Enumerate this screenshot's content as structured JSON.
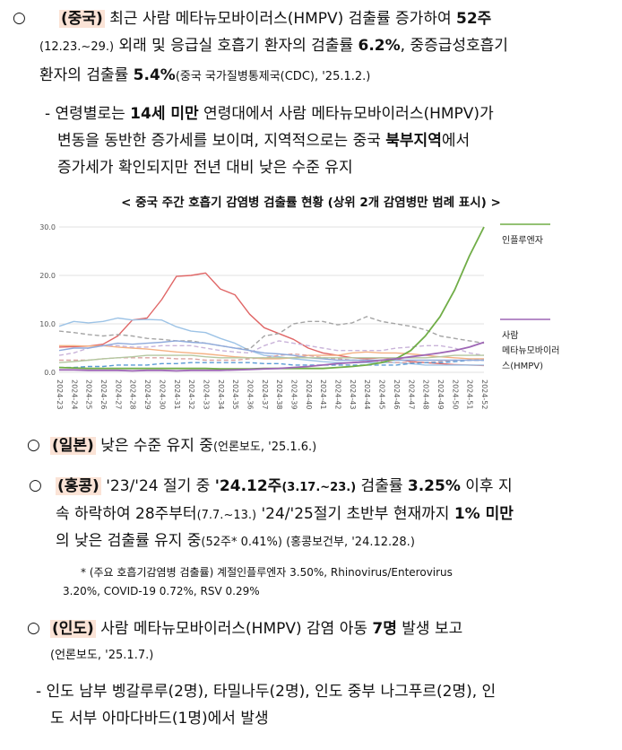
{
  "china": {
    "bullet": "○",
    "country": "(중국)",
    "l1": [
      {
        "t": " 최근 사람 메타뉴모바이러스(HMPV) 검출률 증가하여 ",
        "b": false
      },
      {
        "t": "52주",
        "b": true
      }
    ],
    "l2": [
      {
        "t": "(12.23.~29.)",
        "b": false,
        "s": "sm"
      },
      {
        "t": " 외래 및 응급실 호흡기 환자의 검출률 ",
        "b": false
      },
      {
        "t": "6.2%",
        "b": true
      },
      {
        "t": ", 중증급성호흡기",
        "b": false
      }
    ],
    "l3": [
      {
        "t": "환자의 검출률 ",
        "b": false
      },
      {
        "t": "5.4%",
        "b": true
      },
      {
        "t": "(중국 국가질병통제국(CDC), '25.1.2.)",
        "b": false,
        "s": "sm"
      }
    ],
    "sub": [
      [
        {
          "t": "- 연령별로는 ",
          "b": false
        },
        {
          "t": "14세 미만",
          "b": true
        },
        {
          "t": " 연령대에서 사람 메타뉴모바이러스(HMPV)가",
          "b": false
        }
      ],
      [
        {
          "t": "변동을 동반한 증가세를 보이며, 지역적으로는 중국 ",
          "b": false
        },
        {
          "t": "북부지역",
          "b": true
        },
        {
          "t": "에서",
          "b": false
        }
      ],
      [
        {
          "t": "증가세가 확인되지만 전년 대비 낮은 수준 유지",
          "b": false
        }
      ]
    ]
  },
  "chart_title": "< 중국 주간 호흡기 감염병 검출률 현황 (상위 2개 감염병만 범례 표시) >",
  "chart_data": {
    "type": "line",
    "title": "< 중국 주간 호흡기 감염병 검출률 현황 (상위 2개 감염병만 범례 표시) >",
    "xlabel": "",
    "ylabel": "",
    "ylim": [
      0,
      30
    ],
    "yticks": [
      "0.0",
      "10.0",
      "20.0",
      "30.0"
    ],
    "grid": "horizontal",
    "legend_position": "right",
    "x": [
      "2024-23",
      "2024-24",
      "2024-25",
      "2024-26",
      "2024-27",
      "2024-28",
      "2024-29",
      "2024-30",
      "2024-31",
      "2024-32",
      "2024-33",
      "2024-34",
      "2024-35",
      "2024-36",
      "2024-37",
      "2024-38",
      "2024-39",
      "2024-40",
      "2024-41",
      "2024-42",
      "2024-43",
      "2024-44",
      "2024-45",
      "2024-46",
      "2024-47",
      "2024-48",
      "2024-49",
      "2024-50",
      "2024-51",
      "2024-52"
    ],
    "series": [
      {
        "name": "인플루엔자",
        "color": "#70ad47",
        "dash": false,
        "values": [
          1.0,
          0.9,
          0.8,
          0.8,
          0.8,
          0.8,
          0.8,
          0.8,
          0.8,
          0.8,
          0.8,
          0.7,
          0.7,
          0.7,
          0.8,
          0.8,
          0.8,
          0.8,
          0.8,
          1.0,
          1.2,
          1.5,
          2.0,
          2.8,
          4.5,
          7.5,
          11.5,
          17.0,
          24.0,
          30.0
        ]
      },
      {
        "name": "사람 메타뉴모바이러스(HMPV)",
        "color": "#9e67b5",
        "dash": false,
        "values": [
          0.5,
          0.5,
          0.4,
          0.4,
          0.4,
          0.3,
          0.4,
          0.4,
          0.3,
          0.4,
          0.4,
          0.4,
          0.5,
          0.6,
          0.7,
          0.8,
          1.0,
          1.2,
          1.5,
          1.8,
          2.0,
          2.2,
          2.5,
          2.8,
          3.2,
          3.6,
          4.0,
          4.5,
          5.2,
          6.2
        ]
      },
      {
        "name": "",
        "color": "#e06666",
        "dash": false,
        "values": [
          5.2,
          5.3,
          5.4,
          5.8,
          7.5,
          10.8,
          11.2,
          15.0,
          19.8,
          20.0,
          20.5,
          17.2,
          16.0,
          12.0,
          9.2,
          8.0,
          6.8,
          5.0,
          4.0,
          3.5,
          3.0,
          2.8,
          3.0,
          2.8,
          2.2,
          2.0,
          1.8,
          1.6,
          1.5,
          1.4
        ]
      },
      {
        "name": "",
        "color": "#9dc3e6",
        "dash": false,
        "values": [
          9.5,
          10.5,
          10.2,
          10.5,
          11.2,
          10.8,
          10.9,
          10.8,
          9.4,
          8.5,
          8.2,
          7.0,
          6.0,
          4.5,
          3.5,
          3.2,
          2.8,
          2.5,
          2.2,
          2.0,
          2.0,
          2.0,
          2.0,
          2.0,
          1.8,
          1.5,
          1.5,
          1.5,
          1.5,
          1.5
        ]
      },
      {
        "name": "",
        "color": "#f4b183",
        "dash": false,
        "values": [
          5.5,
          5.5,
          5.4,
          5.5,
          5.2,
          5.0,
          4.8,
          4.5,
          4.2,
          4.0,
          3.8,
          3.5,
          3.2,
          3.0,
          2.8,
          2.8,
          3.0,
          3.5,
          3.5,
          3.5,
          4.0,
          4.2,
          4.0,
          4.0,
          3.8,
          3.5,
          3.2,
          3.0,
          2.8,
          2.8
        ]
      },
      {
        "name": "",
        "color": "#a5a5a5",
        "dash": true,
        "values": [
          8.5,
          8.2,
          7.8,
          7.5,
          7.8,
          7.5,
          7.0,
          6.8,
          6.5,
          6.5,
          6.0,
          5.5,
          5.0,
          4.8,
          7.5,
          8.0,
          10.0,
          10.5,
          10.5,
          9.8,
          10.2,
          11.5,
          10.5,
          10.0,
          9.5,
          8.8,
          7.5,
          7.0,
          6.5,
          6.0
        ]
      },
      {
        "name": "",
        "color": "#c9b3d9",
        "dash": true,
        "values": [
          3.5,
          4.0,
          5.0,
          5.5,
          5.5,
          5.2,
          5.2,
          5.5,
          5.5,
          5.5,
          5.0,
          4.5,
          4.2,
          4.0,
          5.5,
          6.5,
          6.0,
          5.5,
          5.0,
          4.5,
          4.5,
          4.5,
          4.5,
          5.0,
          5.2,
          5.5,
          5.5,
          5.0,
          4.0,
          3.5
        ]
      },
      {
        "name": "",
        "color": "#d9a3a3",
        "dash": true,
        "values": [
          2.5,
          2.5,
          2.5,
          2.8,
          3.0,
          3.0,
          3.0,
          3.0,
          2.8,
          2.8,
          2.5,
          2.5,
          2.5,
          2.8,
          3.0,
          3.5,
          3.8,
          3.5,
          3.0,
          2.8,
          2.5,
          2.5,
          2.2,
          2.0,
          2.0,
          2.0,
          2.2,
          2.5,
          2.5,
          2.5
        ]
      },
      {
        "name": "",
        "color": "#5b9bd5",
        "dash": true,
        "values": [
          1.0,
          1.0,
          1.2,
          1.2,
          1.5,
          1.5,
          1.5,
          1.8,
          1.8,
          2.0,
          2.0,
          2.0,
          2.0,
          2.0,
          1.8,
          1.8,
          1.5,
          1.5,
          1.5,
          1.5,
          1.5,
          1.5,
          1.5,
          1.5,
          1.8,
          2.0,
          2.0,
          2.2,
          2.5,
          2.5
        ]
      },
      {
        "name": "",
        "color": "#8faadc",
        "dash": false,
        "values": [
          4.5,
          5.0,
          5.0,
          5.5,
          6.0,
          5.8,
          6.0,
          6.2,
          6.5,
          6.2,
          6.0,
          5.5,
          5.0,
          4.5,
          4.0,
          3.8,
          3.5,
          3.0,
          2.8,
          2.5,
          2.5,
          2.5,
          2.5,
          2.5,
          2.5,
          2.5,
          2.5,
          2.5,
          2.5,
          2.5
        ]
      },
      {
        "name": "",
        "color": "#b4c7a0",
        "dash": false,
        "values": [
          2.0,
          2.2,
          2.5,
          2.8,
          3.0,
          3.2,
          3.5,
          3.5,
          3.5,
          3.5,
          3.2,
          3.0,
          3.0,
          3.0,
          3.0,
          3.0,
          3.0,
          3.0,
          3.0,
          3.0,
          3.0,
          3.0,
          3.0,
          3.0,
          3.0,
          3.0,
          3.2,
          3.5,
          3.5,
          3.5
        ]
      }
    ]
  },
  "japan": {
    "bullet": "○",
    "country": "(일본)",
    "l1": [
      {
        "t": " 낮은 수준 유지 중",
        "b": false
      },
      {
        "t": "(언론보도, '25.1.6.)",
        "b": false,
        "s": "sm"
      }
    ]
  },
  "hongkong": {
    "bullet": "○",
    "country": "(홍콩)",
    "l1": [
      {
        "t": " '23/'24 절기 중 ",
        "b": false
      },
      {
        "t": "'24.12주",
        "b": true
      },
      {
        "t": "(3.17.~23.)",
        "b": true,
        "s": "sm"
      },
      {
        "t": " 검출률 ",
        "b": false
      },
      {
        "t": "3.25%",
        "b": true
      },
      {
        "t": " 이후 지",
        "b": false
      }
    ],
    "l2": [
      {
        "t": "속 하락하여 28주부터",
        "b": false
      },
      {
        "t": "(7.7.~13.)",
        "b": false,
        "s": "sm"
      },
      {
        "t": " '24/'25절기 초반부 현재까지 ",
        "b": false
      },
      {
        "t": "1% 미만",
        "b": true
      }
    ],
    "l3": [
      {
        "t": "의 낮은 검출률 유지 중",
        "b": false
      },
      {
        "t": "(52주* 0.41%) (홍콩보건부, '24.12.28.)",
        "b": false,
        "s": "sm"
      }
    ],
    "note1": "* (주요 호흡기감염병 검출률) 계절인플루엔자 3.50%, Rhinovirus/Enterovirus",
    "note2": "3.20%, COVID-19 0.72%, RSV 0.29%"
  },
  "india": {
    "bullet": "○",
    "country": "(인도)",
    "l1": [
      {
        "t": " 사람 메타뉴모바이러스(HMPV) 감염 아동 ",
        "b": false
      },
      {
        "t": "7명",
        "b": true
      },
      {
        "t": " 발생 보고",
        "b": false
      }
    ],
    "l2": [
      {
        "t": "(언론보도, '25.1.7.)",
        "b": false,
        "s": "sm"
      }
    ],
    "sub1": "- 인도 남부 벵갈루루(2명), 타밀나두(2명), 인도 중부 나그푸르(2명), 인",
    "sub2": "도 서부 아마다바드(1명)에서 발생"
  }
}
